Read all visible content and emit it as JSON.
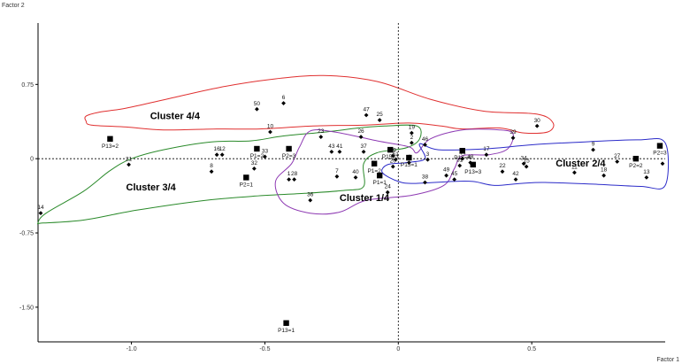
{
  "chart_data": {
    "type": "scatter",
    "xlabel": "Factor 1",
    "ylabel": "Factor 2",
    "xlim": [
      -1.35,
      1.0
    ],
    "ylim": [
      -1.85,
      1.37
    ],
    "x_ticks": [
      {
        "value": -1.0,
        "label": "-1.0"
      },
      {
        "value": -0.5,
        "label": "-0.5"
      },
      {
        "value": 0.0,
        "label": "0"
      },
      {
        "value": 0.5,
        "label": "0.5"
      }
    ],
    "y_ticks": [
      {
        "value": 0.75,
        "label": "0.75"
      },
      {
        "value": 0.0,
        "label": "0"
      },
      {
        "value": -0.75,
        "label": "-0.75"
      },
      {
        "value": -1.5,
        "label": "-1.50"
      }
    ],
    "points": [
      {
        "label": "50",
        "x": -0.53,
        "y": 0.5
      },
      {
        "label": "6",
        "x": -0.43,
        "y": 0.56
      },
      {
        "label": "47",
        "x": -0.12,
        "y": 0.44
      },
      {
        "label": "25",
        "x": -0.07,
        "y": 0.39
      },
      {
        "label": "10",
        "x": -0.48,
        "y": 0.27
      },
      {
        "label": "30",
        "x": 0.52,
        "y": 0.33
      },
      {
        "label": "23",
        "x": -0.29,
        "y": 0.22
      },
      {
        "label": "26",
        "x": -0.14,
        "y": 0.22
      },
      {
        "label": "19",
        "x": 0.05,
        "y": 0.26
      },
      {
        "label": "2",
        "x": 0.05,
        "y": 0.16
      },
      {
        "label": "46",
        "x": 0.1,
        "y": 0.14
      },
      {
        "label": "39",
        "x": 0.43,
        "y": 0.21
      },
      {
        "label": "43",
        "x": -0.25,
        "y": 0.07
      },
      {
        "label": "41",
        "x": -0.22,
        "y": 0.07
      },
      {
        "label": "37",
        "x": -0.13,
        "y": 0.07
      },
      {
        "label": "16",
        "x": -0.68,
        "y": 0.04
      },
      {
        "label": "12",
        "x": -0.66,
        "y": 0.04
      },
      {
        "label": "33",
        "x": -0.5,
        "y": 0.02
      },
      {
        "label": "29",
        "x": -0.02,
        "y": 0.03
      },
      {
        "label": "51",
        "x": -0.01,
        "y": -0.01
      },
      {
        "label": "4",
        "x": 0.04,
        "y": -0.04
      },
      {
        "label": "3",
        "x": 0.11,
        "y": -0.01
      },
      {
        "label": "44",
        "x": 0.24,
        "y": 0.0
      },
      {
        "label": "48",
        "x": 0.27,
        "y": -0.04
      },
      {
        "label": "17",
        "x": 0.33,
        "y": 0.04
      },
      {
        "label": "9",
        "x": 0.73,
        "y": 0.09
      },
      {
        "label": "34",
        "x": 0.47,
        "y": -0.05
      },
      {
        "label": "15",
        "x": 0.48,
        "y": -0.08
      },
      {
        "label": "27",
        "x": 0.82,
        "y": -0.03
      },
      {
        "label": "21",
        "x": -1.01,
        "y": -0.06
      },
      {
        "label": "32",
        "x": -0.54,
        "y": -0.1
      },
      {
        "label": "8",
        "x": -0.7,
        "y": -0.13
      },
      {
        "label": "22",
        "x": 0.39,
        "y": -0.13
      },
      {
        "label": "11",
        "x": 0.66,
        "y": -0.14
      },
      {
        "label": "18",
        "x": 0.77,
        "y": -0.17
      },
      {
        "label": "13",
        "x": 0.93,
        "y": -0.19
      },
      {
        "label": "7",
        "x": -0.23,
        "y": -0.18
      },
      {
        "label": "40",
        "x": -0.16,
        "y": -0.19
      },
      {
        "label": "20",
        "x": -0.02,
        "y": -0.08
      },
      {
        "label": "31",
        "x": 0.23,
        "y": -0.07
      },
      {
        "label": "49",
        "x": 0.18,
        "y": -0.17
      },
      {
        "label": "45",
        "x": 0.21,
        "y": -0.21
      },
      {
        "label": "42",
        "x": 0.44,
        "y": -0.21
      },
      {
        "label": "1",
        "x": -0.41,
        "y": -0.21
      },
      {
        "label": "28",
        "x": -0.39,
        "y": -0.21
      },
      {
        "label": "38",
        "x": 0.1,
        "y": -0.24
      },
      {
        "label": "24",
        "x": -0.04,
        "y": -0.34
      },
      {
        "label": "36",
        "x": -0.33,
        "y": -0.42
      },
      {
        "label": "14",
        "x": -1.34,
        "y": -0.55
      },
      {
        "label": "",
        "x": 0.99,
        "y": -0.05
      }
    ],
    "centroids": [
      {
        "label": "P13=2",
        "x": -1.08,
        "y": 0.2
      },
      {
        "label": "P1=2",
        "x": -0.53,
        "y": 0.1
      },
      {
        "label": "P2=3",
        "x": -0.41,
        "y": 0.1
      },
      {
        "label": "P15=3",
        "x": -0.03,
        "y": 0.09
      },
      {
        "label": "P15=1",
        "x": 0.04,
        "y": 0.01
      },
      {
        "label": "P13=4",
        "x": 0.24,
        "y": 0.08
      },
      {
        "label": "P2=3",
        "x": 0.98,
        "y": 0.13
      },
      {
        "label": "P2=2",
        "x": 0.89,
        "y": 0.0
      },
      {
        "label": "P1=2",
        "x": -0.09,
        "y": -0.05
      },
      {
        "label": "P13=3",
        "x": 0.28,
        "y": -0.06
      },
      {
        "label": "P1=1",
        "x": -0.07,
        "y": -0.17
      },
      {
        "label": "P2=1",
        "x": -0.57,
        "y": -0.19
      },
      {
        "label": "P13=1",
        "x": -0.42,
        "y": -1.66
      }
    ],
    "clusters": [
      {
        "name": "Cluster 4/4",
        "color": "#e03030",
        "label_at": [
          -0.93,
          0.4
        ],
        "outline": [
          [
            -1.17,
            0.43
          ],
          [
            -1.12,
            0.47
          ],
          [
            -1.02,
            0.51
          ],
          [
            -0.87,
            0.6
          ],
          [
            -0.67,
            0.72
          ],
          [
            -0.48,
            0.8
          ],
          [
            -0.28,
            0.84
          ],
          [
            -0.08,
            0.78
          ],
          [
            0.12,
            0.6
          ],
          [
            0.32,
            0.48
          ],
          [
            0.52,
            0.45
          ],
          [
            0.58,
            0.36
          ],
          [
            0.56,
            0.27
          ],
          [
            0.47,
            0.26
          ],
          [
            0.38,
            0.31
          ],
          [
            0.24,
            0.3
          ],
          [
            0.16,
            0.33
          ],
          [
            0.04,
            0.36
          ],
          [
            -0.12,
            0.34
          ],
          [
            -0.32,
            0.33
          ],
          [
            -0.52,
            0.3
          ],
          [
            -0.68,
            0.3
          ],
          [
            -0.88,
            0.29
          ],
          [
            -1.02,
            0.32
          ],
          [
            -1.15,
            0.34
          ],
          [
            -1.17,
            0.38
          ]
        ]
      },
      {
        "name": "Cluster 3/4",
        "color": "#2a8a2a",
        "label_at": [
          -1.02,
          -0.32
        ],
        "outline": [
          [
            -1.35,
            -0.65
          ],
          [
            -1.32,
            -0.55
          ],
          [
            -1.18,
            -0.33
          ],
          [
            -1.08,
            -0.12
          ],
          [
            -1.0,
            0.0
          ],
          [
            -0.88,
            0.09
          ],
          [
            -0.7,
            0.17
          ],
          [
            -0.55,
            0.18
          ],
          [
            -0.43,
            0.23
          ],
          [
            -0.27,
            0.27
          ],
          [
            -0.15,
            0.31
          ],
          [
            -0.05,
            0.33
          ],
          [
            0.07,
            0.33
          ],
          [
            0.08,
            0.2
          ],
          [
            0.03,
            0.11
          ],
          [
            -0.08,
            0.06
          ],
          [
            -0.13,
            -0.05
          ],
          [
            -0.13,
            -0.28
          ],
          [
            -0.2,
            -0.32
          ],
          [
            -0.35,
            -0.35
          ],
          [
            -0.55,
            -0.38
          ],
          [
            -0.75,
            -0.43
          ],
          [
            -0.98,
            -0.52
          ],
          [
            -1.18,
            -0.62
          ],
          [
            -1.33,
            -0.65
          ]
        ]
      },
      {
        "name": "Cluster 1/4",
        "color": "#8e3ab3",
        "label_at": [
          -0.22,
          -0.43
        ],
        "outline": [
          [
            -0.22,
            -0.54
          ],
          [
            -0.33,
            -0.55
          ],
          [
            -0.43,
            -0.45
          ],
          [
            -0.46,
            -0.23
          ],
          [
            -0.4,
            -0.05
          ],
          [
            -0.37,
            0.12
          ],
          [
            -0.33,
            0.28
          ],
          [
            -0.24,
            0.27
          ],
          [
            -0.08,
            0.18
          ],
          [
            0.04,
            0.12
          ],
          [
            0.07,
            0.06
          ],
          [
            0.12,
            0.2
          ],
          [
            0.24,
            0.29
          ],
          [
            0.38,
            0.29
          ],
          [
            0.43,
            0.25
          ],
          [
            0.41,
            0.1
          ],
          [
            0.34,
            0.04
          ],
          [
            0.24,
            0.03
          ],
          [
            0.21,
            -0.1
          ],
          [
            0.17,
            -0.27
          ],
          [
            0.05,
            -0.37
          ],
          [
            -0.12,
            -0.42
          ]
        ]
      },
      {
        "name": "Cluster 2/4",
        "color": "#2c2cc9",
        "label_at": [
          0.59,
          -0.08
        ],
        "outline": [
          [
            0.08,
            0.15
          ],
          [
            0.15,
            0.09
          ],
          [
            0.33,
            0.1
          ],
          [
            0.5,
            0.14
          ],
          [
            0.7,
            0.17
          ],
          [
            0.9,
            0.19
          ],
          [
            1.0,
            0.16
          ],
          [
            1.0,
            -0.27
          ],
          [
            0.91,
            -0.28
          ],
          [
            0.75,
            -0.26
          ],
          [
            0.55,
            -0.24
          ],
          [
            0.46,
            -0.25
          ],
          [
            0.36,
            -0.27
          ],
          [
            0.28,
            -0.23
          ],
          [
            0.2,
            -0.23
          ],
          [
            0.06,
            -0.25
          ],
          [
            0.0,
            -0.23
          ],
          [
            -0.06,
            -0.14
          ],
          [
            -0.04,
            -0.06
          ],
          [
            0.03,
            -0.04
          ],
          [
            0.1,
            0.0
          ]
        ]
      }
    ]
  }
}
